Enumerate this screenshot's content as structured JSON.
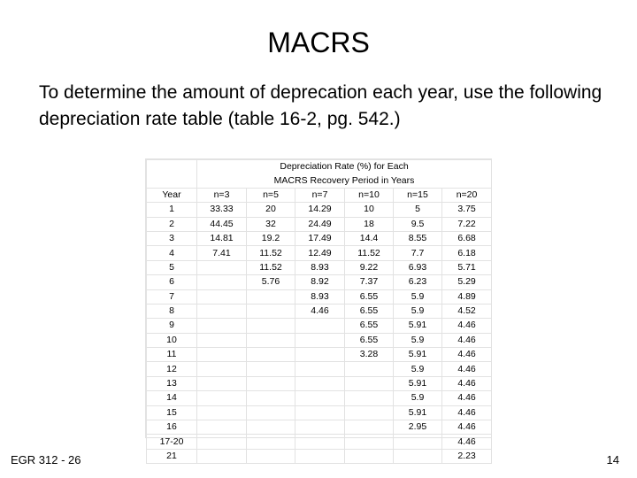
{
  "slide": {
    "title": "MACRS",
    "intro": "To determine the amount of deprecation each year, use the following depreciation rate table (table 16-2, pg. 542.)",
    "footer_left": "EGR 312 - 26",
    "footer_right": "14"
  },
  "table": {
    "header_line1": "Depreciation Rate (%) for Each",
    "header_line2": "MACRS Recovery Period in Years",
    "columns": [
      "Year",
      "n=3",
      "n=5",
      "n=7",
      "n=10",
      "n=15",
      "n=20"
    ],
    "rows": [
      [
        "1",
        "33.33",
        "20",
        "14.29",
        "10",
        "5",
        "3.75"
      ],
      [
        "2",
        "44.45",
        "32",
        "24.49",
        "18",
        "9.5",
        "7.22"
      ],
      [
        "3",
        "14.81",
        "19.2",
        "17.49",
        "14.4",
        "8.55",
        "6.68"
      ],
      [
        "4",
        "7.41",
        "11.52",
        "12.49",
        "11.52",
        "7.7",
        "6.18"
      ],
      [
        "5",
        "",
        "11.52",
        "8.93",
        "9.22",
        "6.93",
        "5.71"
      ],
      [
        "6",
        "",
        "5.76",
        "8.92",
        "7.37",
        "6.23",
        "5.29"
      ],
      [
        "7",
        "",
        "",
        "8.93",
        "6.55",
        "5.9",
        "4.89"
      ],
      [
        "8",
        "",
        "",
        "4.46",
        "6.55",
        "5.9",
        "4.52"
      ],
      [
        "9",
        "",
        "",
        "",
        "6.55",
        "5.91",
        "4.46"
      ],
      [
        "10",
        "",
        "",
        "",
        "6.55",
        "5.9",
        "4.46"
      ],
      [
        "11",
        "",
        "",
        "",
        "3.28",
        "5.91",
        "4.46"
      ],
      [
        "12",
        "",
        "",
        "",
        "",
        "5.9",
        "4.46"
      ],
      [
        "13",
        "",
        "",
        "",
        "",
        "5.91",
        "4.46"
      ],
      [
        "14",
        "",
        "",
        "",
        "",
        "5.9",
        "4.46"
      ],
      [
        "15",
        "",
        "",
        "",
        "",
        "5.91",
        "4.46"
      ],
      [
        "16",
        "",
        "",
        "",
        "",
        "2.95",
        "4.46"
      ],
      [
        "17-20",
        "",
        "",
        "",
        "",
        "",
        "4.46"
      ],
      [
        "21",
        "",
        "",
        "",
        "",
        "",
        "2.23"
      ]
    ]
  }
}
